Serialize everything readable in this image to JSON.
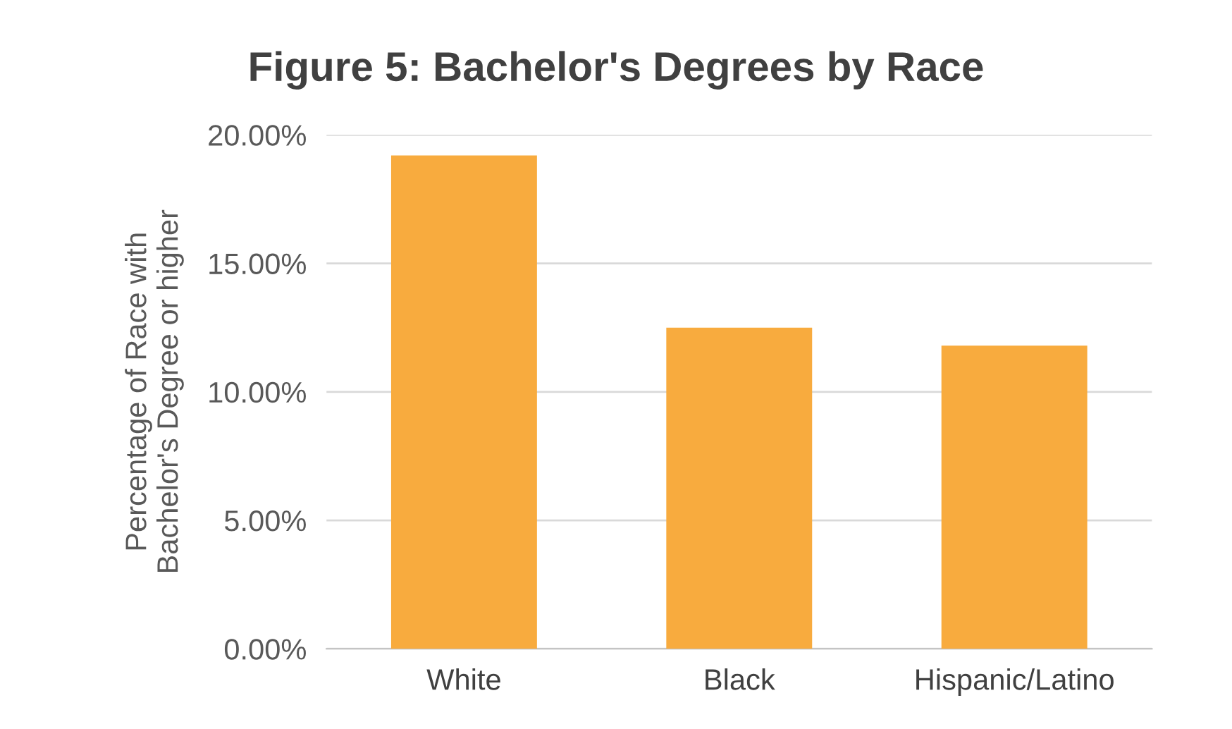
{
  "chart_data": {
    "type": "bar",
    "title": "Figure 5: Bachelor's Degrees by Race",
    "ylabel": "Percentage of Race with\nBachelor's Degree or higher",
    "categories": [
      "White",
      "Black",
      "Hispanic/Latino"
    ],
    "values": [
      19.2,
      12.5,
      11.8
    ],
    "color": "#f8ab3e",
    "ylim": [
      0,
      20
    ],
    "yticks": [
      {
        "value": 0,
        "label": "0.00%"
      },
      {
        "value": 5,
        "label": "5.00%"
      },
      {
        "value": 10,
        "label": "10.00%"
      },
      {
        "value": 15,
        "label": "15.00%"
      },
      {
        "value": 20,
        "label": "20.00%"
      }
    ],
    "grid": "y",
    "legend": false
  }
}
